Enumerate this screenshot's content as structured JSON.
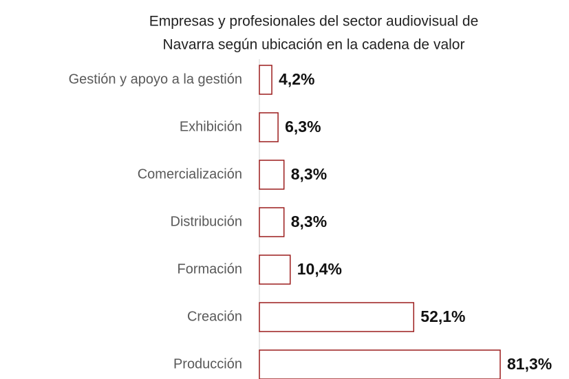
{
  "chart_data": {
    "type": "hbar",
    "title": [
      "Empresas y profesionales del sector audiovisual de",
      "Navarra según ubicación en la cadena de valor"
    ],
    "categories": [
      "Gestión y apoyo a la gestión",
      "Exhibición",
      "Comercialización",
      "Distribución",
      "Formación",
      "Creación",
      "Producción"
    ],
    "values": [
      4.2,
      6.3,
      8.3,
      8.3,
      10.4,
      52.1,
      81.3
    ],
    "value_labels": [
      "4,2%",
      "6,3%",
      "8,3%",
      "8,3%",
      "10,4%",
      "52,1%",
      "81,3%"
    ],
    "color": "#9b1c1c"
  }
}
